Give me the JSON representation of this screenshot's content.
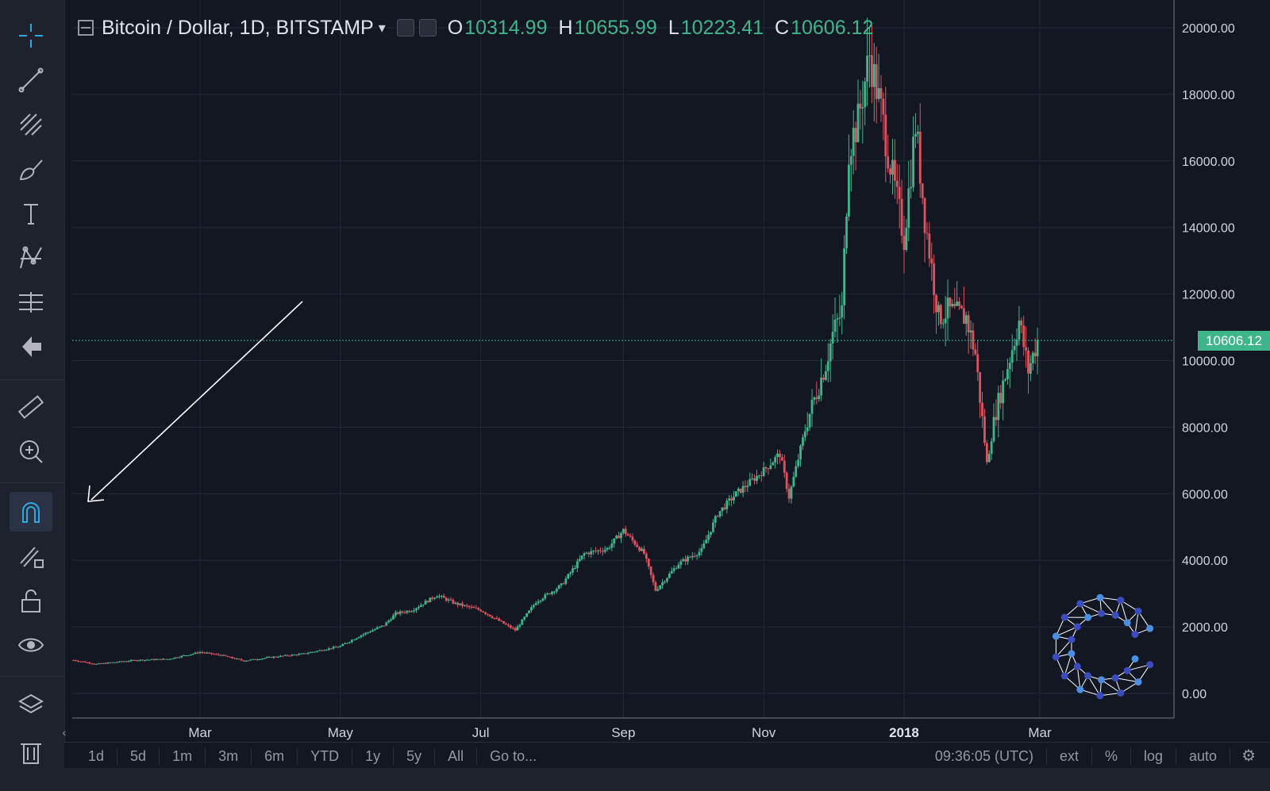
{
  "header": {
    "symbol": "Bitcoin / Dollar, 1D, BITSTAMP",
    "dropdown_glyph": "▾",
    "open_label": "O",
    "open": "10314.99",
    "high_label": "H",
    "high": "10655.99",
    "low_label": "L",
    "low": "10223.41",
    "close_label": "C",
    "close": "10606.12"
  },
  "toolbar": {
    "icons": [
      "crosshair-icon",
      "trend-line-icon",
      "fib-icon",
      "brush-icon",
      "text-icon",
      "pattern-icon",
      "measure-prediction-icon",
      "back-arrow-icon",
      "ruler-icon",
      "zoom-icon",
      "magnet-icon",
      "lock-drawing-icon",
      "unlock-icon",
      "eye-icon",
      "layers-icon",
      "trash-icon"
    ]
  },
  "price_tag": "10606.12",
  "bottom_bar": {
    "ranges": [
      "1d",
      "5d",
      "1m",
      "3m",
      "6m",
      "YTD",
      "1y",
      "5y",
      "All",
      "Go to..."
    ],
    "time": "09:36:05 (UTC)",
    "ext": "ext",
    "pct": "%",
    "log": "log",
    "auto": "auto"
  },
  "colors": {
    "up": "#3fb58a",
    "down": "#e05260",
    "bg": "#131722",
    "grid": "#252a36"
  },
  "chart_data": {
    "type": "candlestick",
    "title": "Bitcoin / Dollar, 1D, BITSTAMP",
    "xlabel": "",
    "ylabel": "",
    "ylim": [
      0,
      20000
    ],
    "yticks": [
      "20000.00",
      "18000.00",
      "16000.00",
      "14000.00",
      "12000.00",
      "10000.00",
      "8000.00",
      "6000.00",
      "4000.00",
      "2000.00",
      "0.00"
    ],
    "xticks": [
      "Mar",
      "May",
      "Jul",
      "Sep",
      "Nov",
      "2018",
      "Mar"
    ],
    "grid": true,
    "series": [
      {
        "name": "",
        "x": [
          "2017-01-05",
          "2017-01-15",
          "2017-02-01",
          "2017-02-15",
          "2017-03-01",
          "2017-03-10",
          "2017-03-20",
          "2017-04-01",
          "2017-04-15",
          "2017-05-01",
          "2017-05-10",
          "2017-05-20",
          "2017-05-25",
          "2017-06-01",
          "2017-06-12",
          "2017-06-20",
          "2017-07-01",
          "2017-07-16",
          "2017-07-25",
          "2017-08-05",
          "2017-08-15",
          "2017-08-25",
          "2017-09-01",
          "2017-09-10",
          "2017-09-15",
          "2017-09-25",
          "2017-10-05",
          "2017-10-12",
          "2017-10-20",
          "2017-11-01",
          "2017-11-08",
          "2017-11-12",
          "2017-11-20",
          "2017-11-28",
          "2017-12-01",
          "2017-12-05",
          "2017-12-08",
          "2017-12-12",
          "2017-12-17",
          "2017-12-22",
          "2017-12-27",
          "2018-01-01",
          "2018-01-06",
          "2018-01-10",
          "2018-01-16",
          "2018-01-20",
          "2018-01-28",
          "2018-02-01",
          "2018-02-06",
          "2018-02-10",
          "2018-02-16",
          "2018-02-20",
          "2018-02-24",
          "2018-02-28"
        ],
        "close": [
          1000,
          880,
          1000,
          1030,
          1240,
          1150,
          980,
          1090,
          1190,
          1420,
          1750,
          2050,
          2400,
          2500,
          2950,
          2700,
          2500,
          1900,
          2750,
          3250,
          4200,
          4350,
          4900,
          4200,
          3100,
          3900,
          4300,
          5400,
          6000,
          6700,
          7200,
          5900,
          8200,
          9900,
          10800,
          11500,
          16400,
          17200,
          19200,
          17500,
          15500,
          13700,
          17100,
          14300,
          11300,
          11500,
          11300,
          10200,
          6900,
          8500,
          10100,
          11200,
          9700,
          10606
        ]
      }
    ]
  }
}
